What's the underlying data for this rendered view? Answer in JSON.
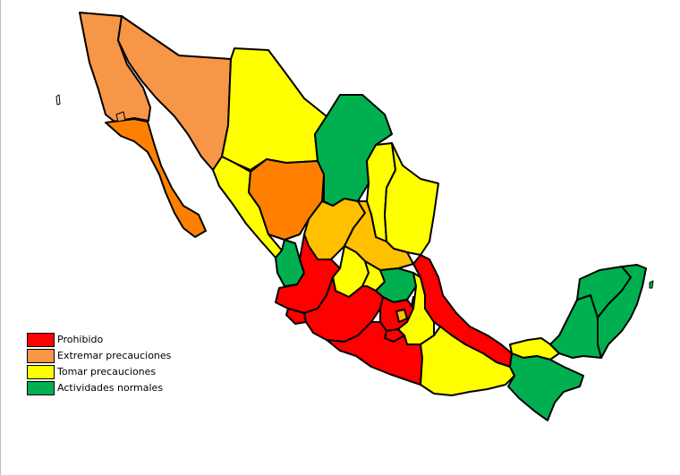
{
  "colors": {
    "prohibido": "#ff0000",
    "extremar": "#f79646",
    "extremar_dark": "#ff8000",
    "tomar": "#ffff00",
    "tomar_orange": "#ffc000",
    "normal": "#00b050"
  },
  "legend": [
    {
      "label": "Prohibido",
      "color": "#ff0000"
    },
    {
      "label": "Extremar precauciones",
      "color": "#f79646"
    },
    {
      "label": "Tomar precauciones",
      "color": "#ffff00"
    },
    {
      "label": "Actividades normales",
      "color": "#00b050"
    }
  ]
}
